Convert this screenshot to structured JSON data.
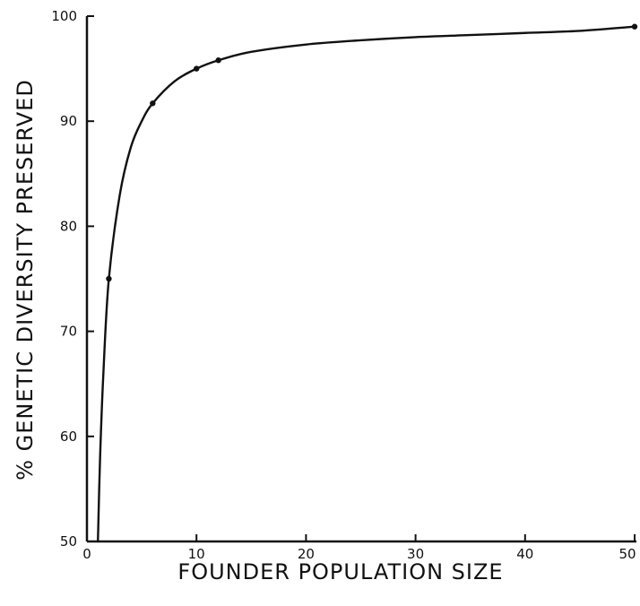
{
  "chart_data": {
    "type": "line",
    "title": "",
    "xlabel": "FOUNDER POPULATION SIZE",
    "ylabel": "% GENETIC DIVERSITY PRESERVED",
    "xlim": [
      0,
      50
    ],
    "ylim": [
      50,
      100
    ],
    "xticks": [
      0,
      10,
      20,
      30,
      40,
      50
    ],
    "xtick_labels": [
      "0",
      "10",
      "20",
      "30",
      "40",
      "50"
    ],
    "yticks": [
      50,
      60,
      70,
      80,
      90,
      100
    ],
    "ytick_labels": [
      "50",
      "60",
      "70",
      "80",
      "90",
      "100"
    ],
    "grid": false,
    "legend": "none",
    "series": [
      {
        "points": [
          {
            "x": 1,
            "y": 50
          },
          {
            "x": 2,
            "y": 75
          },
          {
            "x": 6,
            "y": 91.7
          },
          {
            "x": 10,
            "y": 95
          },
          {
            "x": 12,
            "y": 95.8
          },
          {
            "x": 50,
            "y": 99
          }
        ]
      }
    ],
    "curve_path": [
      [
        1,
        50
      ],
      [
        1.2,
        58
      ],
      [
        1.5,
        66
      ],
      [
        2,
        75
      ],
      [
        3,
        83
      ],
      [
        4,
        87.5
      ],
      [
        5,
        90
      ],
      [
        6,
        91.7
      ],
      [
        8,
        93.8
      ],
      [
        10,
        95
      ],
      [
        12,
        95.8
      ],
      [
        15,
        96.6
      ],
      [
        20,
        97.3
      ],
      [
        25,
        97.7
      ],
      [
        30,
        98.0
      ],
      [
        35,
        98.2
      ],
      [
        40,
        98.4
      ],
      [
        45,
        98.6
      ],
      [
        50,
        99
      ]
    ],
    "color": "#111111"
  }
}
